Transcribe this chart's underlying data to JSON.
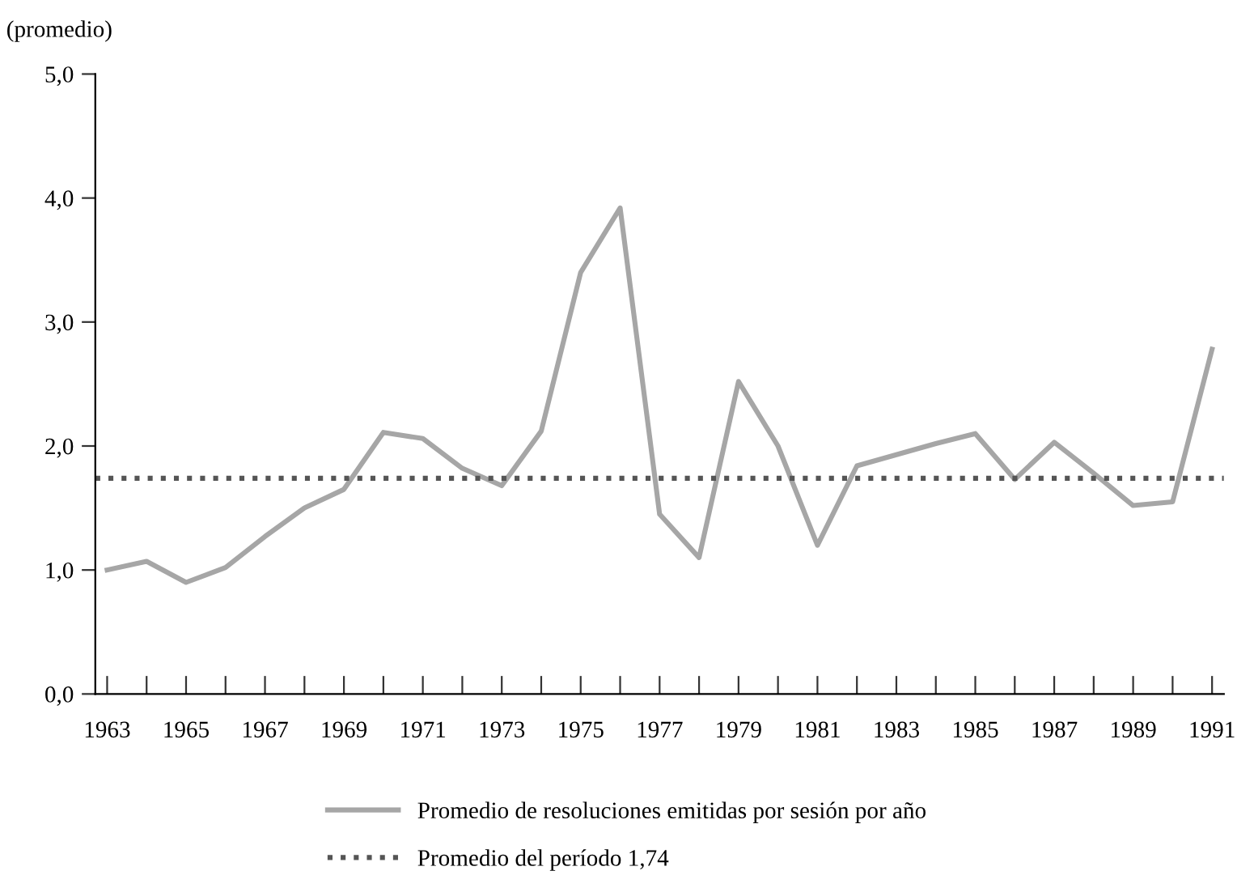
{
  "chart_data": {
    "type": "line",
    "ylabel": "(promedio)",
    "x": [
      1963,
      1964,
      1965,
      1966,
      1967,
      1968,
      1969,
      1970,
      1971,
      1972,
      1973,
      1974,
      1975,
      1976,
      1977,
      1978,
      1979,
      1980,
      1981,
      1982,
      1983,
      1984,
      1985,
      1986,
      1987,
      1988,
      1989,
      1990,
      1991
    ],
    "series": [
      {
        "name": "Promedio de resoluciones emitidas por sesión por año",
        "color": "#a6a6a6",
        "values": [
          1.0,
          1.07,
          0.9,
          1.02,
          1.27,
          1.5,
          1.65,
          2.11,
          2.06,
          1.82,
          1.68,
          2.12,
          3.4,
          3.92,
          1.45,
          1.1,
          2.52,
          2.0,
          1.2,
          1.84,
          1.93,
          2.02,
          2.1,
          1.73,
          2.03,
          1.78,
          1.52,
          1.55,
          2.78
        ]
      }
    ],
    "ref_lines": [
      {
        "axis": "y",
        "value": 1.74,
        "label": "Promedio del período 1,74",
        "color": "#555555",
        "line_style": "dotted"
      }
    ],
    "xlim": [
      1962.7,
      1991.3
    ],
    "xticks": [
      1963,
      {
        "value": 1964,
        "label": null
      },
      1965,
      {
        "value": 1966,
        "label": null
      },
      1967,
      {
        "value": 1968,
        "label": null
      },
      1969,
      {
        "value": 1970,
        "label": null
      },
      1971,
      {
        "value": 1972,
        "label": null
      },
      1973,
      {
        "value": 1974,
        "label": null
      },
      1975,
      {
        "value": 1976,
        "label": null
      },
      1977,
      {
        "value": 1978,
        "label": null
      },
      1979,
      {
        "value": 1980,
        "label": null
      },
      1981,
      {
        "value": 1982,
        "label": null
      },
      1983,
      {
        "value": 1984,
        "label": null
      },
      1985,
      {
        "value": 1986,
        "label": null
      },
      1987,
      {
        "value": 1988,
        "label": null
      },
      1989,
      {
        "value": 1990,
        "label": null
      },
      1991
    ],
    "ylim": [
      0,
      5
    ],
    "yticks": [
      {
        "value": 0,
        "label": "0,0"
      },
      {
        "value": 1,
        "label": "1,0"
      },
      {
        "value": 2,
        "label": "2,0"
      },
      {
        "value": 3,
        "label": "3,0"
      },
      {
        "value": 4,
        "label": "4,0"
      },
      {
        "value": 5,
        "label": "5,0"
      }
    ],
    "grid": false,
    "legend": "bottom",
    "marker": "none",
    "line_style": "solid"
  }
}
